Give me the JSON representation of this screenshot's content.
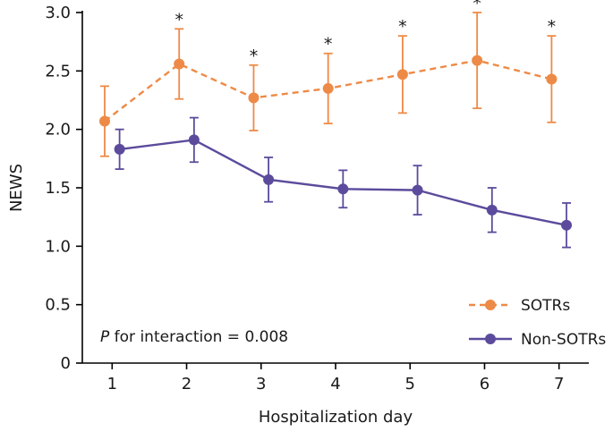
{
  "chart_data": {
    "type": "line",
    "title": "",
    "xlabel": "Hospitalization day",
    "ylabel": "NEWS",
    "x": [
      1,
      2,
      3,
      4,
      5,
      6,
      7
    ],
    "xlim": [
      0.6,
      7.4
    ],
    "ylim": [
      0,
      3.0
    ],
    "yticks": [
      0,
      0.5,
      1.0,
      1.5,
      2.0,
      2.5,
      3.0
    ],
    "ytick_labels": [
      "0",
      "0.5",
      "1.0",
      "1.5",
      "2.0",
      "2.5",
      "3.0"
    ],
    "xtick_labels": [
      "1",
      "2",
      "3",
      "4",
      "5",
      "6",
      "7"
    ],
    "grid": false,
    "legend_position": "lower right",
    "significance_marker": "*",
    "annotation": {
      "italic_part": "P",
      "text_part": " for interaction = 0.008"
    },
    "series": [
      {
        "name": "SOTRs",
        "color": "#EE8A47",
        "line_style": "dashed",
        "marker": "circle",
        "x_offset": -0.1,
        "values": [
          2.07,
          2.56,
          2.27,
          2.35,
          2.47,
          2.59,
          2.43
        ],
        "error": [
          0.3,
          0.3,
          0.28,
          0.3,
          0.33,
          0.41,
          0.37
        ],
        "significant_days": [
          2,
          3,
          4,
          5,
          6,
          7
        ]
      },
      {
        "name": "Non-SOTRs",
        "color": "#5C4B9C",
        "line_style": "solid",
        "marker": "circle",
        "x_offset": 0.1,
        "values": [
          1.83,
          1.91,
          1.57,
          1.49,
          1.48,
          1.31,
          1.18
        ],
        "error": [
          0.17,
          0.19,
          0.19,
          0.16,
          0.21,
          0.19,
          0.19
        ],
        "significant_days": []
      }
    ]
  }
}
